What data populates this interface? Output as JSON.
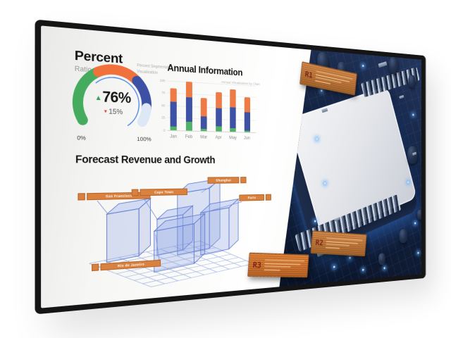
{
  "dashboard": {
    "gauge": {
      "title": "Percent",
      "subtitle": "Ratio",
      "caption_line1": "Percent Segmentation",
      "caption_line2": "Visualization",
      "up_icon": "▲",
      "down_icon": "▼",
      "value_up": "76%",
      "value_down": "15%",
      "min_label": "0%",
      "max_label": "100%"
    },
    "annual": {
      "title": "Annual Information",
      "caption": "Annual Visualization by Chart"
    },
    "forecast": {
      "title": "Forecast Revenue and Growth"
    }
  },
  "circuit": {
    "tags": [
      {
        "label": "R1"
      },
      {
        "label": "R2"
      },
      {
        "label": "R3"
      }
    ]
  },
  "colors": {
    "gauge_green": "#45ab5f",
    "gauge_orange": "#f0713c",
    "gauge_blue": "#3c50a6",
    "gauge_remainder": "#dde7f5",
    "gauge_inner_arc": "#4f86ec",
    "bar_green": "#4fb266",
    "bar_blue": "#3d52a5",
    "bar_orange": "#ee7a46",
    "tag_orange": "#d9823f",
    "forecast_line": "#7b93d8"
  },
  "chart_data": [
    {
      "type": "pie",
      "variant": "gauge-donut",
      "title": "Percent Ratio",
      "note": "240-degree gauge from 0% (bottom-left) to 100% (bottom-right)",
      "segments": [
        {
          "name": "green",
          "value": 95,
          "color": "#45ab5f"
        },
        {
          "name": "orange",
          "value": 70,
          "color": "#f0713c"
        },
        {
          "name": "blue",
          "value": 50,
          "color": "#3c50a6"
        },
        {
          "name": "remainder",
          "value": 25,
          "color": "#dde7f5"
        }
      ],
      "unit": "degrees of 240° arc",
      "primary_value": "76% up",
      "secondary_value": "15% down",
      "scale_labels": [
        "0%",
        "100%"
      ]
    },
    {
      "type": "bar",
      "stacked": true,
      "title": "Annual Information",
      "categories": [
        "Jan",
        "Feb",
        "Mar",
        "Apr",
        "May",
        "Jun"
      ],
      "series": [
        {
          "name": "bottom-green",
          "color": "#4fb266",
          "values": [
            8,
            18,
            4,
            10,
            8,
            3
          ]
        },
        {
          "name": "middle-blue",
          "color": "#3d52a5",
          "values": [
            49,
            50,
            26,
            38,
            44,
            39
          ]
        },
        {
          "name": "top-orange",
          "color": "#ee7a46",
          "values": [
            28,
            32,
            38,
            34,
            38,
            33
          ]
        }
      ],
      "ylabels": [
        100,
        75,
        50,
        25,
        0
      ],
      "ylim": [
        0,
        100
      ],
      "grid": true,
      "legend": false
    },
    {
      "type": "bar",
      "variant": "3d-wireframe",
      "title": "Forecast Revenue and Growth",
      "categories": [
        "San Francisco",
        "Cape Town",
        "Shanghai",
        "Paris",
        "Rio de Janeiro"
      ],
      "values": [
        75,
        58,
        100,
        70,
        66
      ],
      "unit": "relative height (estimated, Shanghai = 100)"
    }
  ]
}
